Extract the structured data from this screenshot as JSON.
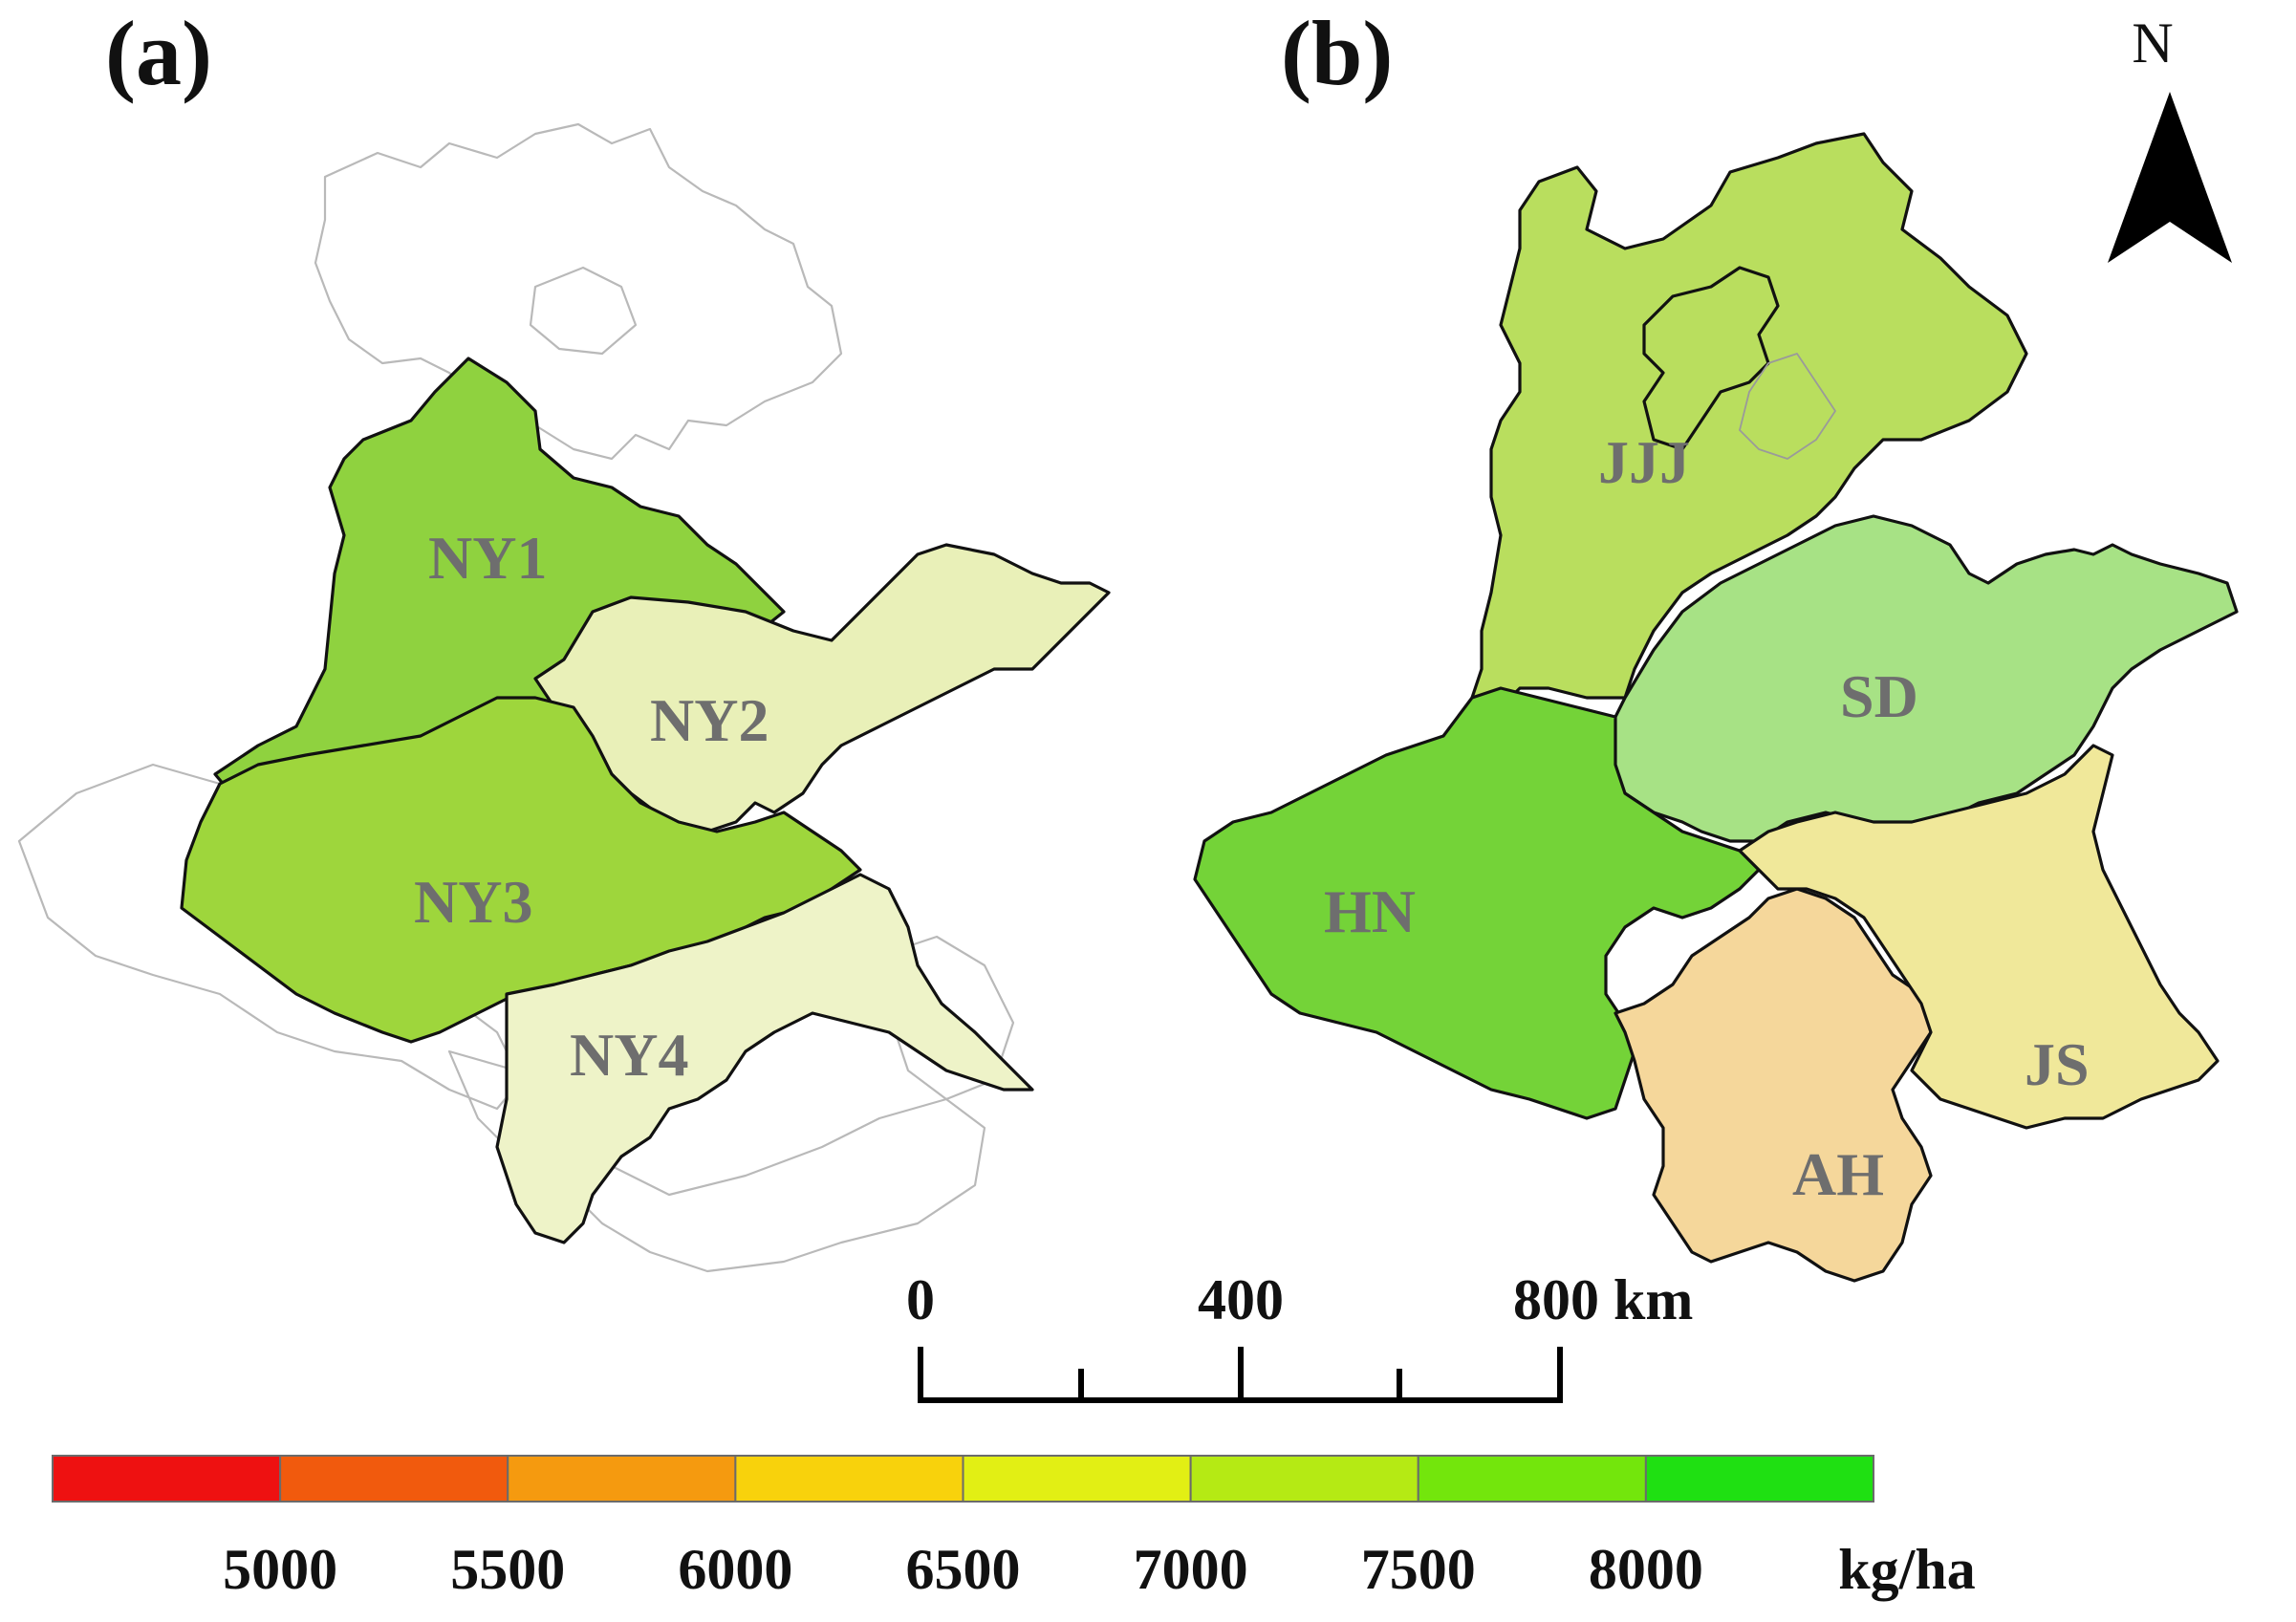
{
  "panels": {
    "a": {
      "label": "(a)",
      "regions": [
        {
          "id": "NY1",
          "label": "NY1",
          "tone": "#8fd23f"
        },
        {
          "id": "NY2",
          "label": "NY2",
          "tone": "#e9f0b8"
        },
        {
          "id": "NY3",
          "label": "NY3",
          "tone": "#9ed63c"
        },
        {
          "id": "NY4",
          "label": "NY4",
          "tone": "#eef3c8"
        }
      ]
    },
    "b": {
      "label": "(b)",
      "regions": [
        {
          "id": "JJJ",
          "label": "JJJ",
          "tone": "#b9de5e"
        },
        {
          "id": "SD",
          "label": "SD",
          "tone": "#a7e285"
        },
        {
          "id": "HN",
          "label": "HN",
          "tone": "#74d338"
        },
        {
          "id": "AH",
          "label": "AH",
          "tone": "#f5d79b"
        },
        {
          "id": "JS",
          "label": "JS",
          "tone": "#f0e89a"
        }
      ]
    }
  },
  "north_arrow": {
    "label": "N"
  },
  "scale_bar": {
    "ticks": [
      "0",
      "400",
      "800 km"
    ]
  },
  "legend": {
    "colors": [
      "#ee1111",
      "#f15a0d",
      "#f59a0f",
      "#f8d20c",
      "#e2ef14",
      "#b5ea14",
      "#73e60c",
      "#1fe012"
    ],
    "labels": [
      "5000",
      "5500",
      "6000",
      "6500",
      "7000",
      "7500",
      "8000"
    ],
    "unit": "kg/ha"
  }
}
